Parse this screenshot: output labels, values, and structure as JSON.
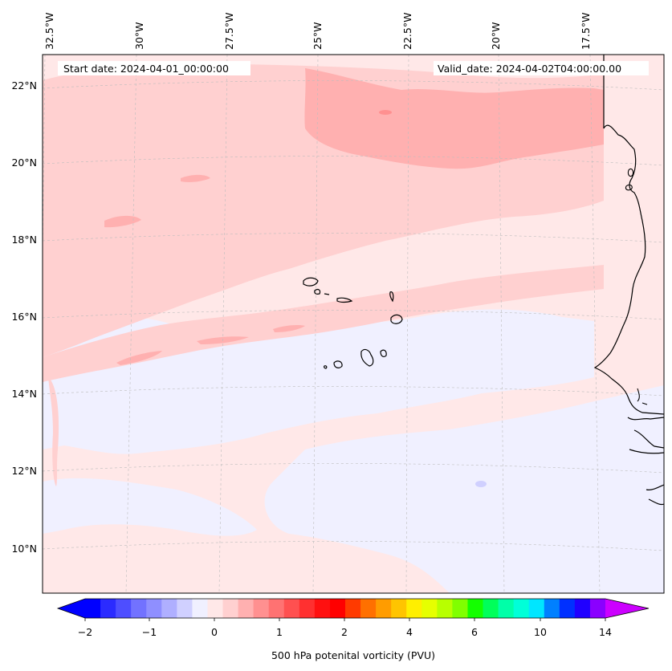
{
  "map": {
    "start_date_label": "Start date: 2024-04-01_00:00:00",
    "valid_date_label": "Valid_date: 2024-04-02T04:00:00.00",
    "longitude_labels": [
      "32.5°W",
      "30°W",
      "27.5°W",
      "25°W",
      "22.5°W",
      "20°W",
      "17.5°W"
    ],
    "latitude_labels": [
      "22°N",
      "20°N",
      "18°N",
      "16°N",
      "14°N",
      "12°N",
      "10°N"
    ],
    "extent": {
      "lon_min": -32.6,
      "lon_max": -15.5,
      "lat_min": 8.9,
      "lat_max": 22.7
    }
  },
  "colorbar": {
    "label": "500 hPa potenital vorticity (PVU)",
    "tick_labels": [
      "−2",
      "−1",
      "0",
      "1",
      "2",
      "4",
      "6",
      "10",
      "14"
    ],
    "extend": "both",
    "colors": [
      "#0000ff",
      "#2b2bff",
      "#4e4eff",
      "#7272ff",
      "#8f8fff",
      "#afafff",
      "#d0d0ff",
      "#f0f0ff",
      "#ffe8e8",
      "#ffd0d0",
      "#ffb0b0",
      "#ff9090",
      "#ff7272",
      "#ff5050",
      "#ff3030",
      "#ff1010",
      "#ff0000",
      "#ff3a00",
      "#ff7000",
      "#ff9c00",
      "#ffc400",
      "#ffef00",
      "#e6ff00",
      "#b8ff00",
      "#80ff00",
      "#14ff00",
      "#00ff5a",
      "#00ffa8",
      "#00ffd8",
      "#00e6ff",
      "#0080ff",
      "#0030ff",
      "#2000ff",
      "#8a00ff"
    ],
    "under_color": "#0000ff",
    "over_color": "#cc00ff"
  }
}
